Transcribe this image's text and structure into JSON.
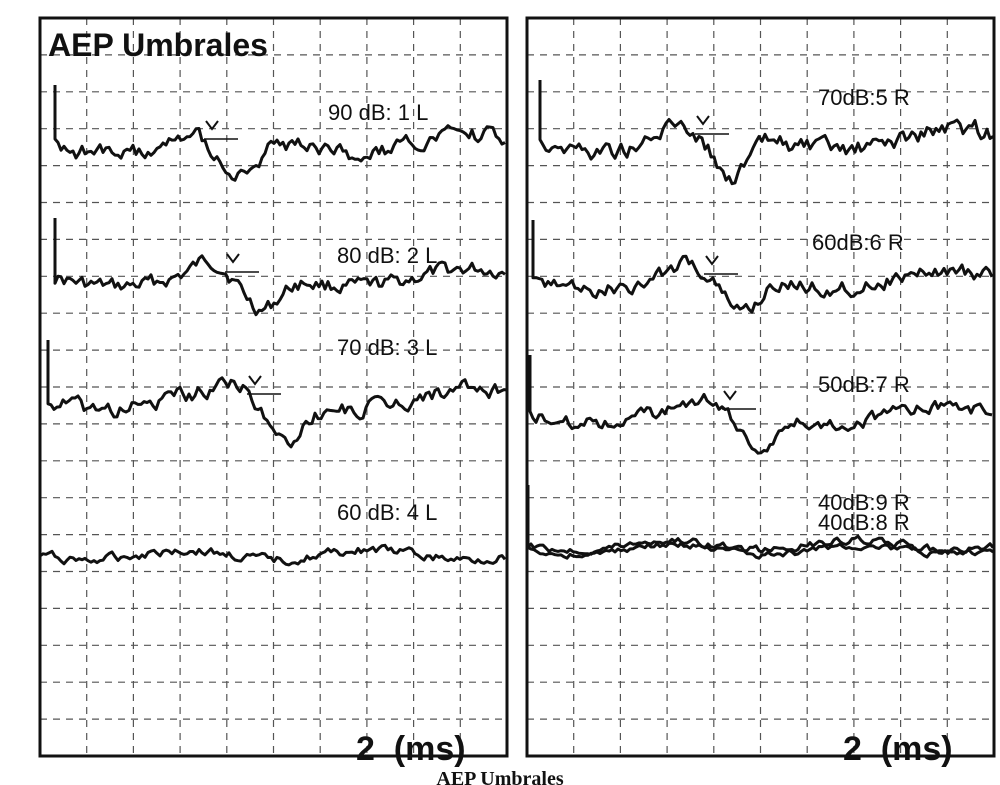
{
  "chart_data": {
    "type": "line",
    "title": "AEP Umbrales",
    "caption": "AEP Umbrales",
    "x_unit_label": "2  (ms)",
    "grid": true,
    "panels": [
      {
        "id": "left",
        "series": [
          {
            "name": "90 dB: 1 L",
            "wave": 1,
            "peak_mark": true
          },
          {
            "name": "80 dB: 2 L",
            "wave": 2,
            "peak_mark": true
          },
          {
            "name": "70 dB: 3 L",
            "wave": 3,
            "peak_mark": true
          },
          {
            "name": "60 dB: 4 L",
            "wave": 4,
            "peak_mark": false
          }
        ]
      },
      {
        "id": "right",
        "series": [
          {
            "name": "70dB:5 R",
            "wave": 5,
            "peak_mark": true
          },
          {
            "name": "60dB:6 R",
            "wave": 6,
            "peak_mark": true
          },
          {
            "name": "50dB:7 R",
            "wave": 7,
            "peak_mark": true
          },
          {
            "name": "40dB:9 R",
            "wave": 9,
            "peak_mark": false
          },
          {
            "name": "40dB:8 R",
            "wave": 8,
            "peak_mark": false
          }
        ]
      }
    ]
  }
}
